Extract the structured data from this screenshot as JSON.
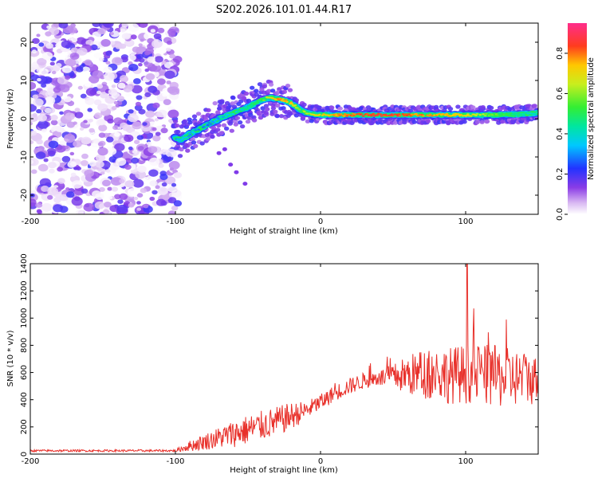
{
  "title": "S202.2026.101.01.44.R17",
  "chart_data": [
    {
      "type": "heatmap",
      "name": "spectrogram",
      "xlabel": "Height of straight line (km)",
      "ylabel": "Frequency (Hz)",
      "xlim": [
        -200,
        150
      ],
      "ylim": [
        -25,
        25
      ],
      "xticks": [
        -200,
        -100,
        0,
        100
      ],
      "yticks": [
        -20,
        -10,
        0,
        10,
        20
      ],
      "colorbar": {
        "label": "Normalized spectral amplitude",
        "range": [
          0,
          0.95
        ],
        "ticks": [
          "0.0",
          "0.2",
          "0.4",
          "0.6",
          "0.8"
        ]
      },
      "ridge": {
        "description_x_km": [
          -100,
          -96,
          -90,
          -80,
          -70,
          -60,
          -50,
          -40,
          -35,
          -30,
          -25,
          -20,
          -15,
          -10,
          -5,
          0,
          10,
          20,
          40,
          60,
          80,
          100,
          120,
          140,
          150
        ],
        "frequency_hz": [
          -5.0,
          -5.5,
          -4.0,
          -2.0,
          0.0,
          1.5,
          3.0,
          5.0,
          5.5,
          5.2,
          4.8,
          4.0,
          2.5,
          1.5,
          1.2,
          1.0,
          1.0,
          1.0,
          1.0,
          1.0,
          1.0,
          1.0,
          1.0,
          1.2,
          1.5
        ],
        "amplitude": [
          0.3,
          0.35,
          0.35,
          0.3,
          0.35,
          0.4,
          0.45,
          0.6,
          0.75,
          0.8,
          0.8,
          0.75,
          0.6,
          0.65,
          0.7,
          0.75,
          0.8,
          0.85,
          0.9,
          0.85,
          0.8,
          0.75,
          0.6,
          0.45,
          0.4
        ]
      },
      "noise_region_x_km": [
        -200,
        -98
      ]
    },
    {
      "type": "line",
      "name": "snr",
      "xlabel": "Height of straight line (km)",
      "ylabel": "SNR (10 * v/v)",
      "xlim": [
        -200,
        150
      ],
      "ylim": [
        0,
        1400
      ],
      "xticks": [
        -200,
        -100,
        0,
        100
      ],
      "yticks": [
        0,
        200,
        400,
        600,
        800,
        1000,
        1200,
        1400
      ],
      "color": "#e8302a",
      "envelope": {
        "x": [
          -200,
          -100,
          -90,
          -80,
          -70,
          -60,
          -50,
          -40,
          -30,
          -20,
          -10,
          0,
          10,
          20,
          30,
          40,
          50,
          60,
          70,
          80,
          90,
          100,
          110,
          120,
          130,
          140,
          150
        ],
        "mean": [
          25,
          25,
          60,
          90,
          120,
          150,
          180,
          210,
          240,
          280,
          320,
          380,
          450,
          500,
          540,
          560,
          570,
          580,
          590,
          590,
          580,
          590,
          590,
          570,
          560,
          560,
          540
        ],
        "spread": [
          8,
          8,
          40,
          60,
          80,
          100,
          110,
          110,
          110,
          100,
          70,
          60,
          60,
          60,
          60,
          60,
          90,
          150,
          180,
          200,
          210,
          220,
          220,
          230,
          220,
          200,
          180
        ]
      },
      "peak": {
        "x": 101,
        "y": 1420
      }
    }
  ]
}
